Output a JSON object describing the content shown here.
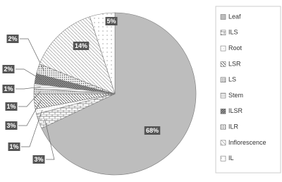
{
  "chart_data": {
    "type": "pie",
    "categories": [
      "Leaf",
      "ILS",
      "Root",
      "LSR",
      "LS",
      "Stem",
      "ILSR",
      "ILR",
      "Inflorescence",
      "IL"
    ],
    "values": [
      68,
      3,
      1,
      3,
      1,
      1,
      2,
      2,
      14,
      5
    ],
    "value_labels": [
      "68%",
      "3%",
      "1%",
      "3%",
      "1%",
      "1%",
      "2%",
      "2%",
      "14%",
      "5%"
    ],
    "legend": "right"
  }
}
